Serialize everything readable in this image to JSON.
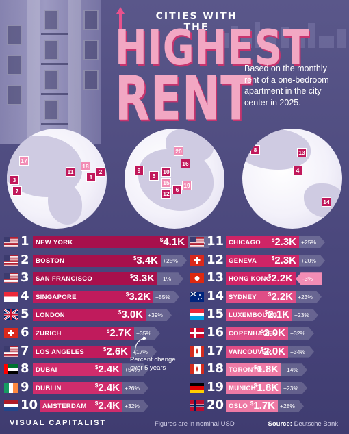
{
  "header": {
    "title_small": "CITIES WITH THE",
    "title_line1": "HIGHEST",
    "title_line2": "RENT",
    "subtitle": "Based on the monthly rent of a one-bedroom apartment in the city center in 2025."
  },
  "maps": {
    "north_america_pins": [
      "17",
      "3",
      "7",
      "11",
      "18",
      "1",
      "2"
    ],
    "europe_pins": [
      "20",
      "16",
      "9",
      "10",
      "5",
      "15",
      "12",
      "6",
      "19"
    ],
    "asia_pacific_pins": [
      "8",
      "13",
      "4",
      "14"
    ]
  },
  "legend_note": "Percent change over 5 years",
  "footer": {
    "brand": "VISUAL CAPITALIST",
    "note": "Figures are in nominal USD",
    "source_label": "Source:",
    "source_value": "Deutsche Bank"
  },
  "colors": {
    "bar_dark": "#b0124f",
    "bar_light": "#e8528d",
    "accent_pink": "#f2a7c3",
    "background": "#4b4878"
  },
  "chart_data": {
    "type": "bar",
    "title": "CITIES WITH THE HIGHEST RENT",
    "unit": "USD per month",
    "value_prefix": "$",
    "categories": [
      "NEW YORK",
      "BOSTON",
      "SAN FRANCISCO",
      "SINGAPORE",
      "LONDON",
      "ZURICH",
      "LOS ANGELES",
      "DUBAI",
      "DUBLIN",
      "AMSTERDAM",
      "CHICAGO",
      "GENEVA",
      "HONG KONG",
      "SYDNEY",
      "LUXEMBOURG",
      "COPENHAGEN",
      "VANCOUVER",
      "TORONTO",
      "MUNICH",
      "OSLO"
    ],
    "series": [
      {
        "ranks": [
          "1",
          "2",
          "3",
          "4",
          "5",
          "6",
          "7",
          "8",
          "9",
          "10",
          "11",
          "12",
          "13",
          "14",
          "15",
          "16",
          "17",
          "18",
          "19",
          "20"
        ],
        "values": [
          4100,
          3400,
          3300,
          3200,
          3000,
          2700,
          2600,
          2400,
          2400,
          2400,
          2300,
          2300,
          2200,
          2200,
          2100,
          2000,
          2000,
          1800,
          1800,
          1700
        ],
        "value_labels": [
          "4.1K",
          "3.4K",
          "3.3K",
          "3.2K",
          "3.0K",
          "2.7K",
          "2.6K",
          "2.4K",
          "2.4K",
          "2.4K",
          "2.3K",
          "2.3K",
          "2.2K",
          "2.2K",
          "2.1K",
          "2.0K",
          "2.0K",
          "1.8K",
          "1.8K",
          "1.7K"
        ],
        "change_5yr": [
          "+22%",
          "+25%",
          "+1%",
          "+55%",
          "+39%",
          "+35%",
          "+17%",
          "+54%",
          "+26%",
          "+32%",
          "+25%",
          "+20%",
          "-3%",
          "+23%",
          "+23%",
          "+32%",
          "+34%",
          "+14%",
          "+23%",
          "+28%"
        ],
        "flags": [
          "us",
          "us",
          "us",
          "sg",
          "gb",
          "ch",
          "us",
          "ae",
          "ie",
          "nl",
          "us",
          "ch",
          "hk",
          "au",
          "lu",
          "dk",
          "ca",
          "ca",
          "de",
          "no"
        ]
      }
    ]
  }
}
